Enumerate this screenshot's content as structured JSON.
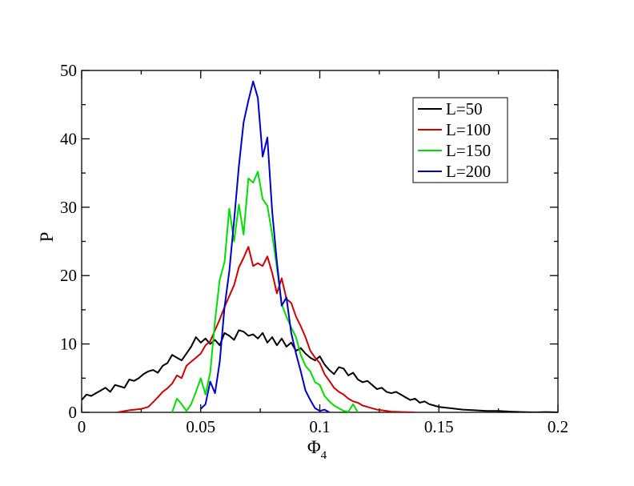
{
  "chart_data": {
    "type": "line",
    "title": "",
    "xlabel": "Φ",
    "xlabel_sub": "4",
    "ylabel": "P",
    "xlim": [
      0,
      0.2
    ],
    "ylim": [
      0,
      50
    ],
    "xticks": [
      0,
      0.05,
      0.1,
      0.15,
      0.2
    ],
    "xtick_labels": [
      "0",
      "0.05",
      "0.1",
      "0.15",
      "0.2"
    ],
    "yticks": [
      0,
      10,
      20,
      30,
      40,
      50
    ],
    "ytick_labels": [
      "0",
      "10",
      "20",
      "30",
      "40",
      "50"
    ],
    "grid": false,
    "legend_position": "top-right",
    "series": [
      {
        "name": "L=50",
        "color": "#000000",
        "x": [
          0,
          0.002,
          0.004,
          0.006,
          0.008,
          0.01,
          0.012,
          0.014,
          0.016,
          0.018,
          0.02,
          0.022,
          0.024,
          0.026,
          0.028,
          0.03,
          0.032,
          0.034,
          0.036,
          0.038,
          0.04,
          0.042,
          0.044,
          0.046,
          0.048,
          0.05,
          0.052,
          0.054,
          0.056,
          0.058,
          0.06,
          0.062,
          0.064,
          0.066,
          0.068,
          0.07,
          0.072,
          0.074,
          0.076,
          0.078,
          0.08,
          0.082,
          0.084,
          0.086,
          0.088,
          0.09,
          0.092,
          0.094,
          0.096,
          0.098,
          0.1,
          0.102,
          0.104,
          0.106,
          0.108,
          0.11,
          0.112,
          0.114,
          0.116,
          0.118,
          0.12,
          0.122,
          0.124,
          0.126,
          0.128,
          0.13,
          0.132,
          0.134,
          0.136,
          0.138,
          0.14,
          0.142,
          0.144,
          0.146,
          0.148,
          0.15,
          0.155,
          0.16,
          0.165,
          0.17,
          0.175,
          0.18,
          0.185,
          0.19,
          0.195,
          0.2
        ],
        "y": [
          1.8,
          2.6,
          2.4,
          2.8,
          3.2,
          3.6,
          3.0,
          4.0,
          3.8,
          3.6,
          4.8,
          4.6,
          5.0,
          5.6,
          6.0,
          6.2,
          5.8,
          6.8,
          7.2,
          8.4,
          8.0,
          7.6,
          8.6,
          9.6,
          11.0,
          10.2,
          10.8,
          10.0,
          10.6,
          9.8,
          11.6,
          11.2,
          10.6,
          12.0,
          11.8,
          11.2,
          11.4,
          10.8,
          11.6,
          10.2,
          11.0,
          9.8,
          10.8,
          9.6,
          10.2,
          9.0,
          9.4,
          8.6,
          8.0,
          7.6,
          8.2,
          7.0,
          6.2,
          5.6,
          6.6,
          6.4,
          5.4,
          5.8,
          4.8,
          4.4,
          4.6,
          4.0,
          3.4,
          3.6,
          3.0,
          2.8,
          3.0,
          2.6,
          2.2,
          1.8,
          2.0,
          1.4,
          1.6,
          1.2,
          1.0,
          0.8,
          0.6,
          0.4,
          0.3,
          0.2,
          0.2,
          0.1,
          0.05,
          0,
          0.05,
          0
        ]
      },
      {
        "name": "L=100",
        "color": "#d40000",
        "x": [
          0.015,
          0.02,
          0.025,
          0.028,
          0.03,
          0.032,
          0.034,
          0.036,
          0.038,
          0.04,
          0.042,
          0.044,
          0.046,
          0.048,
          0.05,
          0.052,
          0.054,
          0.056,
          0.058,
          0.06,
          0.062,
          0.064,
          0.066,
          0.068,
          0.07,
          0.072,
          0.074,
          0.076,
          0.078,
          0.08,
          0.082,
          0.084,
          0.086,
          0.088,
          0.09,
          0.092,
          0.094,
          0.096,
          0.098,
          0.1,
          0.102,
          0.104,
          0.106,
          0.108,
          0.11,
          0.112,
          0.114,
          0.116,
          0.118,
          0.12,
          0.122,
          0.124,
          0.126,
          0.128,
          0.13,
          0.135,
          0.14
        ],
        "y": [
          0,
          0.3,
          0.5,
          0.8,
          1.5,
          2.2,
          3.0,
          3.5,
          4.2,
          5.4,
          5.0,
          6.8,
          7.4,
          8.0,
          8.6,
          9.8,
          10.4,
          12.0,
          13.6,
          15.4,
          17.0,
          18.6,
          21.2,
          22.6,
          24.2,
          21.4,
          21.8,
          21.4,
          22.8,
          20.4,
          17.4,
          19.6,
          16.6,
          16.0,
          14.0,
          12.6,
          11.0,
          9.0,
          8.0,
          7.2,
          5.6,
          4.6,
          3.6,
          3.0,
          2.6,
          2.0,
          1.6,
          1.4,
          1.0,
          0.8,
          0.6,
          0.4,
          0.3,
          0.2,
          0.1,
          0.05,
          0
        ]
      },
      {
        "name": "L=150",
        "color": "#00e000",
        "x": [
          0.038,
          0.04,
          0.042,
          0.044,
          0.046,
          0.048,
          0.05,
          0.052,
          0.054,
          0.056,
          0.058,
          0.06,
          0.062,
          0.064,
          0.066,
          0.068,
          0.07,
          0.072,
          0.074,
          0.076,
          0.078,
          0.08,
          0.082,
          0.084,
          0.086,
          0.088,
          0.09,
          0.092,
          0.094,
          0.096,
          0.098,
          0.1,
          0.102,
          0.104,
          0.106,
          0.108,
          0.11,
          0.112,
          0.114,
          0.116
        ],
        "y": [
          0,
          2.0,
          1.2,
          0.2,
          1.2,
          3.0,
          5.0,
          2.6,
          5.8,
          13.4,
          19.4,
          22.0,
          29.8,
          25.0,
          30.4,
          26.0,
          34.2,
          33.6,
          35.2,
          31.2,
          30.2,
          26.0,
          21.2,
          15.8,
          14.0,
          12.4,
          11.0,
          8.4,
          6.8,
          6.0,
          4.4,
          4.0,
          2.4,
          1.6,
          1.0,
          0.6,
          0.2,
          0.1,
          1.2,
          0
        ]
      },
      {
        "name": "L=200",
        "color": "#0000cc",
        "x": [
          0.05,
          0.052,
          0.054,
          0.056,
          0.058,
          0.06,
          0.062,
          0.064,
          0.066,
          0.068,
          0.07,
          0.072,
          0.074,
          0.076,
          0.078,
          0.08,
          0.082,
          0.084,
          0.086,
          0.088,
          0.09,
          0.092,
          0.094,
          0.096,
          0.098,
          0.1,
          0.102,
          0.104
        ],
        "y": [
          0.5,
          1.2,
          4.5,
          2.8,
          7.4,
          15.4,
          20.6,
          28.0,
          36.0,
          42.4,
          45.6,
          48.4,
          46.0,
          37.4,
          40.2,
          29.4,
          22.0,
          15.6,
          16.8,
          11.6,
          8.6,
          6.0,
          3.2,
          1.8,
          0.6,
          0.2,
          0.4,
          0
        ]
      }
    ]
  }
}
